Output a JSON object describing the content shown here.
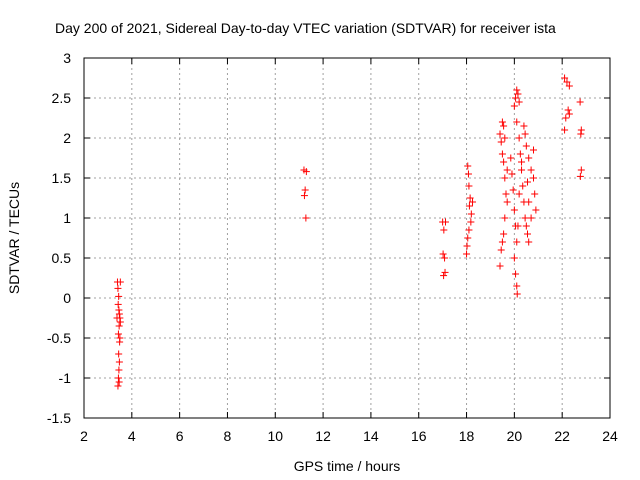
{
  "chart_data": {
    "type": "scatter",
    "title": "Day 200 of 2021, Sidereal Day-to-day VTEC variation (SDTVAR) for receiver ista",
    "xlabel": "GPS time / hours",
    "ylabel": "SDTVAR / TECUs",
    "xlim": [
      2,
      24
    ],
    "ylim": [
      -1.5,
      3
    ],
    "xticks": [
      2,
      4,
      6,
      8,
      10,
      12,
      14,
      16,
      18,
      20,
      22,
      24
    ],
    "xtick_labels": [
      "2",
      "4",
      "6",
      "8",
      "10",
      "12",
      "14",
      "16",
      "18",
      "20",
      "22",
      "24"
    ],
    "yticks": [
      -1.5,
      -1,
      -0.5,
      0,
      0.5,
      1,
      1.5,
      2,
      2.5,
      3
    ],
    "ytick_labels": [
      "-1.5",
      "-1",
      "-0.5",
      "0",
      "0.5",
      "1",
      "1.5",
      "2",
      "2.5",
      "3"
    ],
    "grid": true,
    "marker": "+",
    "series": [
      {
        "name": "SDTVAR",
        "color": "#ff0000",
        "points": [
          [
            3.4,
            0.2
          ],
          [
            3.42,
            0.12
          ],
          [
            3.45,
            0.02
          ],
          [
            3.43,
            -0.08
          ],
          [
            3.46,
            -0.15
          ],
          [
            3.48,
            -0.2
          ],
          [
            3.5,
            -0.25
          ],
          [
            3.52,
            -0.3
          ],
          [
            3.47,
            -0.35
          ],
          [
            3.44,
            -0.45
          ],
          [
            3.5,
            -0.5
          ],
          [
            3.49,
            -0.55
          ],
          [
            3.45,
            -0.7
          ],
          [
            3.48,
            -0.8
          ],
          [
            3.46,
            -0.9
          ],
          [
            3.44,
            -1.0
          ],
          [
            3.47,
            -1.05
          ],
          [
            3.42,
            -1.1
          ],
          [
            3.52,
            0.2
          ],
          [
            3.38,
            -0.25
          ],
          [
            11.2,
            1.6
          ],
          [
            11.25,
            1.35
          ],
          [
            11.22,
            1.28
          ],
          [
            11.28,
            1.0
          ],
          [
            11.3,
            1.58
          ],
          [
            17.0,
            0.95
          ],
          [
            17.05,
            0.85
          ],
          [
            17.02,
            0.55
          ],
          [
            17.08,
            0.5
          ],
          [
            17.1,
            0.32
          ],
          [
            17.04,
            0.28
          ],
          [
            17.12,
            0.95
          ],
          [
            18.05,
            1.65
          ],
          [
            18.08,
            1.55
          ],
          [
            18.1,
            1.4
          ],
          [
            18.15,
            1.25
          ],
          [
            18.12,
            1.15
          ],
          [
            18.2,
            1.05
          ],
          [
            18.18,
            0.95
          ],
          [
            18.1,
            0.85
          ],
          [
            18.05,
            0.75
          ],
          [
            18.02,
            0.65
          ],
          [
            18.0,
            0.55
          ],
          [
            18.25,
            1.2
          ],
          [
            19.4,
            2.05
          ],
          [
            19.5,
            2.2
          ],
          [
            19.55,
            2.15
          ],
          [
            19.6,
            2.0
          ],
          [
            19.45,
            1.95
          ],
          [
            19.5,
            1.8
          ],
          [
            19.55,
            1.7
          ],
          [
            19.6,
            1.5
          ],
          [
            19.65,
            1.3
          ],
          [
            19.7,
            1.2
          ],
          [
            19.6,
            1.0
          ],
          [
            19.55,
            0.8
          ],
          [
            19.5,
            0.7
          ],
          [
            19.45,
            0.6
          ],
          [
            19.4,
            0.4
          ],
          [
            19.7,
            1.6
          ],
          [
            19.85,
            1.75
          ],
          [
            19.9,
            1.55
          ],
          [
            19.95,
            1.35
          ],
          [
            20.0,
            1.1
          ],
          [
            20.05,
            0.9
          ],
          [
            20.1,
            0.7
          ],
          [
            20.0,
            0.5
          ],
          [
            20.05,
            0.3
          ],
          [
            20.1,
            0.15
          ],
          [
            20.12,
            0.05
          ],
          [
            20.0,
            2.4
          ],
          [
            20.05,
            2.5
          ],
          [
            20.1,
            2.6
          ],
          [
            20.15,
            2.55
          ],
          [
            20.2,
            2.45
          ],
          [
            20.1,
            2.2
          ],
          [
            20.2,
            2.0
          ],
          [
            20.25,
            1.8
          ],
          [
            20.3,
            1.6
          ],
          [
            20.35,
            1.4
          ],
          [
            20.4,
            1.2
          ],
          [
            20.45,
            1.0
          ],
          [
            20.5,
            0.9
          ],
          [
            20.55,
            0.8
          ],
          [
            20.6,
            0.7
          ],
          [
            20.4,
            2.15
          ],
          [
            20.45,
            2.05
          ],
          [
            20.5,
            1.9
          ],
          [
            20.6,
            1.75
          ],
          [
            20.7,
            1.6
          ],
          [
            20.8,
            1.5
          ],
          [
            20.85,
            1.3
          ],
          [
            20.9,
            1.1
          ],
          [
            20.7,
            1.0
          ],
          [
            20.6,
            1.2
          ],
          [
            20.8,
            1.85
          ],
          [
            20.3,
            1.7
          ],
          [
            20.2,
            1.3
          ],
          [
            20.15,
            0.9
          ],
          [
            20.55,
            1.45
          ],
          [
            22.1,
            2.75
          ],
          [
            22.2,
            2.7
          ],
          [
            22.3,
            2.65
          ],
          [
            22.25,
            2.35
          ],
          [
            22.15,
            2.25
          ],
          [
            22.1,
            2.1
          ],
          [
            22.3,
            2.3
          ],
          [
            22.75,
            2.45
          ],
          [
            22.8,
            2.1
          ],
          [
            22.78,
            2.05
          ],
          [
            22.8,
            1.6
          ],
          [
            22.76,
            1.52
          ]
        ]
      }
    ]
  }
}
